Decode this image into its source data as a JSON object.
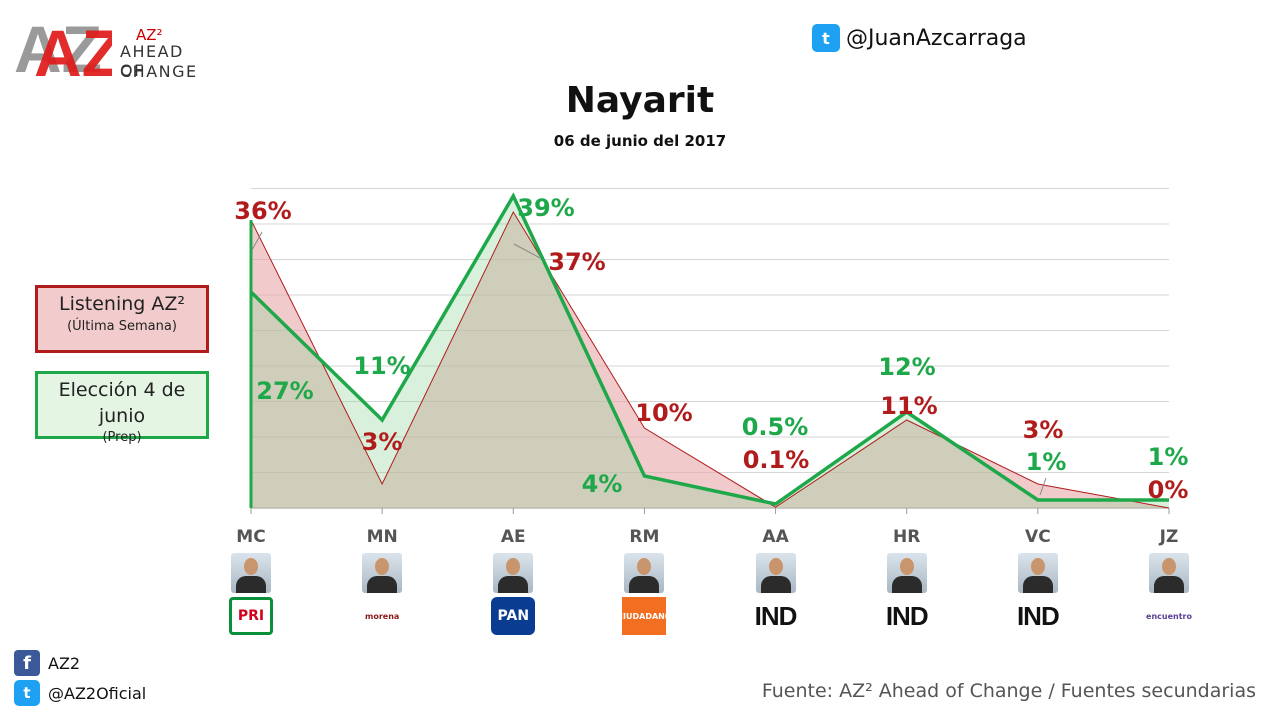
{
  "logo": {
    "mark": "AZ2",
    "tag": "AZ²",
    "line1": "AHEAD OF",
    "line2": "CHANGE"
  },
  "header": {
    "twitter_handle": "@JuanAzcarraga",
    "title": "Nayarit",
    "subtitle": "06 de junio del 2017"
  },
  "legend": {
    "red_label": "Listening AZ²",
    "red_sub": "(Última Semana)",
    "green_label": "Elección 4 de junio",
    "green_sub": "(Prep)"
  },
  "chart_data": {
    "type": "area",
    "categories": [
      "MC",
      "MN",
      "AE",
      "RM",
      "AA",
      "HR",
      "VC",
      "JZ"
    ],
    "series": [
      {
        "name": "Listening AZ² (Última Semana)",
        "color": "#b01c1c",
        "values": [
          36,
          3,
          37,
          10,
          0.1,
          11,
          3,
          0
        ],
        "labels": [
          "36%",
          "3%",
          "37%",
          "10%",
          "0.1%",
          "11%",
          "3%",
          "0%"
        ]
      },
      {
        "name": "Elección 4 de junio (Prep)",
        "color": "#1ea84a",
        "values": [
          27,
          11,
          39,
          4,
          0.5,
          12,
          1,
          1
        ],
        "labels": [
          "27%",
          "11%",
          "39%",
          "4%",
          "0.5%",
          "12%",
          "1%",
          "1%"
        ]
      }
    ],
    "ylim": [
      0,
      40
    ],
    "grid": true,
    "legend_position": "left"
  },
  "candidates": [
    {
      "code": "MC",
      "party": "PRI",
      "party_color": "#ffffff",
      "party_text_color": "#d0021b"
    },
    {
      "code": "MN",
      "party": "morena",
      "party_color": "#ffffff",
      "party_text_color": "#8b1a1a"
    },
    {
      "code": "AE",
      "party": "PAN",
      "party_color": "#0a3d91",
      "party_text_color": "#ffffff"
    },
    {
      "code": "RM",
      "party": "CIUDADANO",
      "party_color": "#f26f21",
      "party_text_color": "#ffffff"
    },
    {
      "code": "AA",
      "party": "IND",
      "party_color": "#ffffff",
      "party_text_color": "#111111"
    },
    {
      "code": "HR",
      "party": "IND",
      "party_color": "#ffffff",
      "party_text_color": "#111111"
    },
    {
      "code": "VC",
      "party": "IND",
      "party_color": "#ffffff",
      "party_text_color": "#111111"
    },
    {
      "code": "JZ",
      "party": "encuentro",
      "party_color": "#ffffff",
      "party_text_color": "#5b3e96"
    }
  ],
  "footer": {
    "facebook": "AZ2",
    "twitter": "@AZ2Oficial",
    "source": "Fuente: AZ² Ahead of Change / Fuentes secundarias"
  }
}
